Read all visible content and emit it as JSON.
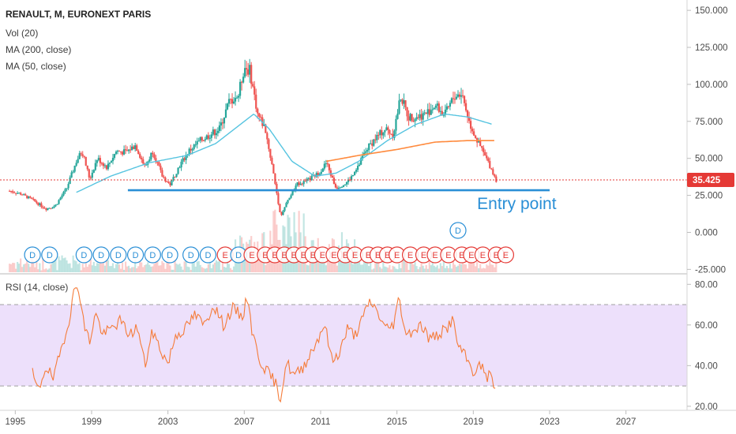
{
  "header": {
    "title": "RENAULT, M, EURONEXT PARIS",
    "indicators": [
      "Vol (20)",
      "MA (200, close)",
      "MA (50, close)"
    ]
  },
  "colors": {
    "up": "#26a69a",
    "down": "#ef5350",
    "ma200": "#ff8a3d",
    "ma50": "#56c4e0",
    "entry_line": "#2a8fd6",
    "rsi_line": "#f57c3a",
    "rsi_band": "#ede0fb",
    "last_price": "#e53935",
    "dividend": "#2a8fd6",
    "earnings": "#e53935"
  },
  "annotation": {
    "text": "Entry point",
    "price": 28.5,
    "x_start": 2000.9,
    "x_end": 2023.0
  },
  "last_price": {
    "label": "35.425",
    "value": 35.425
  },
  "time_axis": {
    "ticks": [
      "1995",
      "1999",
      "2003",
      "2007",
      "2011",
      "2015",
      "2019",
      "2023",
      "2027"
    ],
    "range": [
      1994.2,
      2030.2
    ]
  },
  "rsi_panel": {
    "title": "RSI (14, close)",
    "ticks": [
      "80.00",
      "60.00",
      "40.00",
      "20.00"
    ],
    "band": [
      30,
      70
    ],
    "range": [
      18,
      84
    ]
  },
  "events": [
    {
      "t": "D",
      "x": 1995.9,
      "row": 1
    },
    {
      "t": "D",
      "x": 1996.8,
      "row": 1
    },
    {
      "t": "D",
      "x": 1998.6,
      "row": 1
    },
    {
      "t": "D",
      "x": 1999.5,
      "row": 1
    },
    {
      "t": "D",
      "x": 2000.4,
      "row": 1
    },
    {
      "t": "D",
      "x": 2001.3,
      "row": 1
    },
    {
      "t": "D",
      "x": 2002.2,
      "row": 1
    },
    {
      "t": "D",
      "x": 2003.1,
      "row": 1
    },
    {
      "t": "D",
      "x": 2004.2,
      "row": 1
    },
    {
      "t": "D",
      "x": 2005.1,
      "row": 1
    },
    {
      "t": "E",
      "x": 2006.0,
      "row": 1
    },
    {
      "t": "D",
      "x": 2006.7,
      "row": 1
    },
    {
      "t": "E",
      "x": 2007.4,
      "row": 1
    },
    {
      "t": "E",
      "x": 2008.1,
      "row": 1
    },
    {
      "t": "E",
      "x": 2008.6,
      "row": 1
    },
    {
      "t": "E",
      "x": 2009.1,
      "row": 1
    },
    {
      "t": "E",
      "x": 2009.6,
      "row": 1
    },
    {
      "t": "E",
      "x": 2010.1,
      "row": 1
    },
    {
      "t": "E",
      "x": 2010.6,
      "row": 1
    },
    {
      "t": "E",
      "x": 2011.1,
      "row": 1
    },
    {
      "t": "E",
      "x": 2011.7,
      "row": 1
    },
    {
      "t": "E",
      "x": 2012.3,
      "row": 1
    },
    {
      "t": "E",
      "x": 2012.8,
      "row": 1
    },
    {
      "t": "E",
      "x": 2013.5,
      "row": 1
    },
    {
      "t": "E",
      "x": 2014.0,
      "row": 1
    },
    {
      "t": "E",
      "x": 2014.5,
      "row": 1
    },
    {
      "t": "E",
      "x": 2015.0,
      "row": 1
    },
    {
      "t": "E",
      "x": 2015.7,
      "row": 1
    },
    {
      "t": "E",
      "x": 2016.4,
      "row": 1
    },
    {
      "t": "E",
      "x": 2017.0,
      "row": 1
    },
    {
      "t": "E",
      "x": 2017.7,
      "row": 1
    },
    {
      "t": "E",
      "x": 2018.4,
      "row": 1
    },
    {
      "t": "D",
      "x": 2018.2,
      "row": 0
    },
    {
      "t": "E",
      "x": 2018.9,
      "row": 1
    },
    {
      "t": "E",
      "x": 2019.5,
      "row": 1
    },
    {
      "t": "E",
      "x": 2020.2,
      "row": 1
    },
    {
      "t": "E",
      "x": 2020.7,
      "row": 1
    }
  ],
  "chart_data": [
    {
      "type": "candlestick",
      "title": "RENAULT, M, EURONEXT PARIS",
      "y_ticks": [
        "150.000",
        "125.000",
        "100.000",
        "75.000",
        "50.000",
        "25.000",
        "0.000",
        "-25.000"
      ],
      "ylim": [
        -28,
        157
      ],
      "anchors": [
        [
          1994.7,
          28
        ],
        [
          1995.3,
          26
        ],
        [
          1995.9,
          22
        ],
        [
          1996.6,
          16
        ],
        [
          1997.1,
          18
        ],
        [
          1997.7,
          30
        ],
        [
          1998.2,
          48
        ],
        [
          1998.5,
          55
        ],
        [
          1998.9,
          36
        ],
        [
          1999.3,
          50
        ],
        [
          1999.8,
          44
        ],
        [
          2000.3,
          55
        ],
        [
          2000.8,
          54
        ],
        [
          2001.3,
          59
        ],
        [
          2001.8,
          44
        ],
        [
          2002.2,
          55
        ],
        [
          2002.7,
          38
        ],
        [
          2003.1,
          32
        ],
        [
          2003.6,
          45
        ],
        [
          2004.1,
          55
        ],
        [
          2004.7,
          62
        ],
        [
          2005.2,
          66
        ],
        [
          2005.7,
          70
        ],
        [
          2006.2,
          88
        ],
        [
          2006.7,
          93
        ],
        [
          2007.0,
          112
        ],
        [
          2007.3,
          109
        ],
        [
          2007.7,
          80
        ],
        [
          2008.1,
          70
        ],
        [
          2008.5,
          42
        ],
        [
          2008.9,
          11
        ],
        [
          2009.3,
          22
        ],
        [
          2009.8,
          33
        ],
        [
          2010.3,
          35
        ],
        [
          2010.9,
          40
        ],
        [
          2011.3,
          47
        ],
        [
          2011.8,
          30
        ],
        [
          2012.3,
          33
        ],
        [
          2012.8,
          40
        ],
        [
          2013.4,
          56
        ],
        [
          2013.9,
          64
        ],
        [
          2014.4,
          70
        ],
        [
          2014.8,
          66
        ],
        [
          2015.2,
          92
        ],
        [
          2015.6,
          78
        ],
        [
          2016.0,
          78
        ],
        [
          2016.5,
          80
        ],
        [
          2017.0,
          86
        ],
        [
          2017.5,
          79
        ],
        [
          2018.0,
          92
        ],
        [
          2018.4,
          94
        ],
        [
          2018.8,
          74
        ],
        [
          2019.2,
          62
        ],
        [
          2019.6,
          52
        ],
        [
          2019.9,
          44
        ],
        [
          2020.2,
          35.4
        ]
      ],
      "ma200": [
        [
          2011.3,
          48
        ],
        [
          2013.0,
          52
        ],
        [
          2015.0,
          56
        ],
        [
          2017.0,
          61
        ],
        [
          2018.7,
          62
        ],
        [
          2020.1,
          62
        ]
      ],
      "ma50": [
        [
          1998.2,
          27
        ],
        [
          2000.0,
          38
        ],
        [
          2002.0,
          47
        ],
        [
          2004.0,
          52
        ],
        [
          2005.5,
          60
        ],
        [
          2006.5,
          70
        ],
        [
          2007.5,
          80
        ],
        [
          2008.3,
          70
        ],
        [
          2009.5,
          48
        ],
        [
          2010.7,
          38
        ],
        [
          2011.8,
          40
        ],
        [
          2013.0,
          48
        ],
        [
          2014.5,
          62
        ],
        [
          2016.0,
          73
        ],
        [
          2017.5,
          80
        ],
        [
          2018.7,
          78
        ],
        [
          2020.0,
          73
        ]
      ]
    },
    {
      "type": "line",
      "title": "RSI (14, close)",
      "ylim": [
        18,
        84
      ],
      "anchors": [
        [
          1995.9,
          36
        ],
        [
          1996.2,
          27
        ],
        [
          1996.6,
          40
        ],
        [
          1997.0,
          33
        ],
        [
          1997.4,
          48
        ],
        [
          1997.8,
          62
        ],
        [
          1998.1,
          77
        ],
        [
          1998.3,
          80
        ],
        [
          1998.6,
          60
        ],
        [
          1998.9,
          52
        ],
        [
          1999.2,
          66
        ],
        [
          1999.6,
          55
        ],
        [
          2000.0,
          58
        ],
        [
          2000.5,
          62
        ],
        [
          2001.0,
          55
        ],
        [
          2001.4,
          59
        ],
        [
          2001.8,
          40
        ],
        [
          2002.2,
          57
        ],
        [
          2002.6,
          48
        ],
        [
          2003.0,
          41
        ],
        [
          2003.4,
          55
        ],
        [
          2003.9,
          58
        ],
        [
          2004.4,
          65
        ],
        [
          2004.9,
          60
        ],
        [
          2005.4,
          70
        ],
        [
          2005.9,
          60
        ],
        [
          2006.4,
          68
        ],
        [
          2006.9,
          64
        ],
        [
          2007.2,
          75
        ],
        [
          2007.4,
          57
        ],
        [
          2007.8,
          43
        ],
        [
          2008.2,
          37
        ],
        [
          2008.6,
          32
        ],
        [
          2008.9,
          24
        ],
        [
          2009.2,
          42
        ],
        [
          2009.6,
          35
        ],
        [
          2010.0,
          38
        ],
        [
          2010.4,
          45
        ],
        [
          2010.8,
          52
        ],
        [
          2011.2,
          61
        ],
        [
          2011.6,
          42
        ],
        [
          2012.0,
          47
        ],
        [
          2012.4,
          58
        ],
        [
          2012.8,
          55
        ],
        [
          2013.2,
          63
        ],
        [
          2013.6,
          72
        ],
        [
          2014.0,
          66
        ],
        [
          2014.4,
          58
        ],
        [
          2014.8,
          60
        ],
        [
          2015.1,
          73
        ],
        [
          2015.5,
          55
        ],
        [
          2015.9,
          58
        ],
        [
          2016.3,
          60
        ],
        [
          2016.7,
          53
        ],
        [
          2017.1,
          55
        ],
        [
          2017.6,
          58
        ],
        [
          2017.9,
          63
        ],
        [
          2018.2,
          50
        ],
        [
          2018.6,
          44
        ],
        [
          2019.0,
          37
        ],
        [
          2019.4,
          40
        ],
        [
          2019.7,
          35
        ],
        [
          2020.0,
          34
        ],
        [
          2020.2,
          27
        ]
      ]
    }
  ]
}
